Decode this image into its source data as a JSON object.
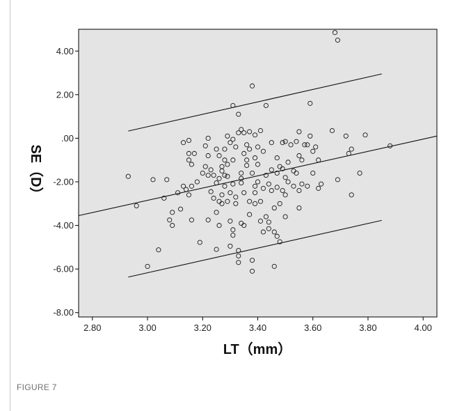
{
  "figure_caption": "FIGURE 7",
  "chart_data": {
    "type": "scatter",
    "xlabel": "LT（mm）",
    "ylabel": "SE（D）",
    "xlim": [
      2.75,
      4.05
    ],
    "ylim": [
      -8.2,
      5.0
    ],
    "xticks": [
      2.8,
      3.0,
      3.2,
      3.4,
      3.6,
      3.8,
      4.0
    ],
    "xtick_labels": [
      "2.80",
      "3.00",
      "3.20",
      "3.40",
      "3.60",
      "3.80",
      "4.00"
    ],
    "yticks": [
      4.0,
      2.0,
      0.0,
      -2.0,
      -4.0,
      -6.0,
      -8.0
    ],
    "ytick_labels": [
      "4.00",
      "2.00",
      ".00",
      "-2.00",
      "-4.00",
      "-6.00",
      "-8.00"
    ],
    "grid": false,
    "background_color": "#e4e4e4",
    "lines": [
      {
        "name": "",
        "x": [
          2.75,
          4.05
        ],
        "y": [
          -3.55,
          0.1
        ]
      },
      {
        "name": "",
        "x": [
          2.93,
          3.85
        ],
        "y": [
          0.33,
          2.95
        ]
      },
      {
        "name": "",
        "x": [
          2.93,
          3.85
        ],
        "y": [
          -6.37,
          -3.77
        ]
      }
    ],
    "points": [
      [
        2.93,
        -1.75
      ],
      [
        2.96,
        -3.1
      ],
      [
        3.0,
        -5.88
      ],
      [
        3.02,
        -1.9
      ],
      [
        3.04,
        -5.12
      ],
      [
        3.06,
        -2.75
      ],
      [
        3.07,
        -1.9
      ],
      [
        3.08,
        -3.75
      ],
      [
        3.09,
        -4.0
      ],
      [
        3.09,
        -3.4
      ],
      [
        3.11,
        -2.5
      ],
      [
        3.12,
        -3.25
      ],
      [
        3.13,
        -2.2
      ],
      [
        3.13,
        -0.2
      ],
      [
        3.14,
        -2.35
      ],
      [
        3.15,
        -1.0
      ],
      [
        3.15,
        -0.7
      ],
      [
        3.15,
        -0.1
      ],
      [
        3.15,
        -2.6
      ],
      [
        3.16,
        -2.2
      ],
      [
        3.16,
        -1.2
      ],
      [
        3.16,
        -3.75
      ],
      [
        3.17,
        -0.7
      ],
      [
        3.18,
        -2.0
      ],
      [
        3.19,
        -4.78
      ],
      [
        3.2,
        -1.6
      ],
      [
        3.21,
        -1.3
      ],
      [
        3.21,
        -0.35
      ],
      [
        3.22,
        -0.8
      ],
      [
        3.22,
        -1.7
      ],
      [
        3.22,
        -3.75
      ],
      [
        3.22,
        0.0
      ],
      [
        3.23,
        -2.45
      ],
      [
        3.23,
        -1.45
      ],
      [
        3.24,
        -1.7
      ],
      [
        3.24,
        -2.75
      ],
      [
        3.25,
        -5.1
      ],
      [
        3.25,
        -0.5
      ],
      [
        3.25,
        -3.4
      ],
      [
        3.25,
        -2.05
      ],
      [
        3.26,
        -1.85
      ],
      [
        3.26,
        -4.0
      ],
      [
        3.26,
        -2.9
      ],
      [
        3.26,
        -0.8
      ],
      [
        3.27,
        -1.5
      ],
      [
        3.27,
        -1.3
      ],
      [
        3.27,
        -2.6
      ],
      [
        3.27,
        -3.0
      ],
      [
        3.28,
        -1.0
      ],
      [
        3.28,
        -1.7
      ],
      [
        3.28,
        -2.2
      ],
      [
        3.28,
        -0.5
      ],
      [
        3.29,
        -1.2
      ],
      [
        3.29,
        0.1
      ],
      [
        3.29,
        -2.9
      ],
      [
        3.29,
        -1.75
      ],
      [
        3.3,
        -3.8
      ],
      [
        3.3,
        -2.5
      ],
      [
        3.3,
        -0.2
      ],
      [
        3.3,
        -4.95
      ],
      [
        3.31,
        -2.1
      ],
      [
        3.31,
        -0.05
      ],
      [
        3.31,
        1.5
      ],
      [
        3.31,
        -1.0
      ],
      [
        3.31,
        -4.2
      ],
      [
        3.31,
        -4.45
      ],
      [
        3.32,
        -3.0
      ],
      [
        3.32,
        -0.4
      ],
      [
        3.32,
        -2.7
      ],
      [
        3.33,
        0.25
      ],
      [
        3.33,
        -5.15
      ],
      [
        3.33,
        -5.4
      ],
      [
        3.33,
        -5.7
      ],
      [
        3.33,
        1.1
      ],
      [
        3.34,
        -1.85
      ],
      [
        3.34,
        -1.6
      ],
      [
        3.34,
        0.4
      ],
      [
        3.34,
        -3.9
      ],
      [
        3.34,
        -2.05
      ],
      [
        3.35,
        -2.5
      ],
      [
        3.35,
        0.25
      ],
      [
        3.35,
        -0.7
      ],
      [
        3.35,
        -4.0
      ],
      [
        3.36,
        -0.3
      ],
      [
        3.36,
        -1.0
      ],
      [
        3.36,
        -1.25
      ],
      [
        3.37,
        -2.9
      ],
      [
        3.37,
        0.3
      ],
      [
        3.37,
        -3.5
      ],
      [
        3.37,
        -0.5
      ],
      [
        3.38,
        -5.6
      ],
      [
        3.38,
        -6.1
      ],
      [
        3.38,
        -1.6
      ],
      [
        3.38,
        2.4
      ],
      [
        3.39,
        -2.2
      ],
      [
        3.39,
        0.15
      ],
      [
        3.39,
        -3.0
      ],
      [
        3.39,
        -0.9
      ],
      [
        3.39,
        -2.5
      ],
      [
        3.4,
        -2.0
      ],
      [
        3.4,
        -0.4
      ],
      [
        3.4,
        -1.2
      ],
      [
        3.41,
        0.35
      ],
      [
        3.41,
        -3.8
      ],
      [
        3.41,
        -2.9
      ],
      [
        3.42,
        -4.3
      ],
      [
        3.42,
        -2.3
      ],
      [
        3.42,
        -0.6
      ],
      [
        3.43,
        -1.7
      ],
      [
        3.43,
        1.5
      ],
      [
        3.43,
        -3.6
      ],
      [
        3.44,
        -3.85
      ],
      [
        3.44,
        -2.1
      ],
      [
        3.44,
        -4.15
      ],
      [
        3.45,
        -0.2
      ],
      [
        3.45,
        -1.45
      ],
      [
        3.45,
        -2.4
      ],
      [
        3.46,
        -4.3
      ],
      [
        3.46,
        -3.2
      ],
      [
        3.46,
        -5.88
      ],
      [
        3.47,
        -2.25
      ],
      [
        3.47,
        -1.6
      ],
      [
        3.47,
        -0.9
      ],
      [
        3.47,
        -4.5
      ],
      [
        3.48,
        -1.3
      ],
      [
        3.48,
        -4.75
      ],
      [
        3.48,
        -3.0
      ],
      [
        3.49,
        -0.2
      ],
      [
        3.49,
        -1.4
      ],
      [
        3.49,
        -2.4
      ],
      [
        3.5,
        -0.15
      ],
      [
        3.5,
        -1.8
      ],
      [
        3.5,
        -2.6
      ],
      [
        3.5,
        -3.6
      ],
      [
        3.51,
        -2.0
      ],
      [
        3.51,
        -1.1
      ],
      [
        3.52,
        -0.3
      ],
      [
        3.53,
        -1.5
      ],
      [
        3.53,
        -2.2
      ],
      [
        3.54,
        -0.15
      ],
      [
        3.54,
        -1.6
      ],
      [
        3.55,
        -3.2
      ],
      [
        3.55,
        -2.4
      ],
      [
        3.55,
        0.3
      ],
      [
        3.55,
        -0.8
      ],
      [
        3.56,
        -1.0
      ],
      [
        3.56,
        -2.1
      ],
      [
        3.57,
        -0.3
      ],
      [
        3.58,
        -2.2
      ],
      [
        3.58,
        -0.3
      ],
      [
        3.59,
        1.6
      ],
      [
        3.59,
        0.1
      ],
      [
        3.6,
        -1.6
      ],
      [
        3.6,
        -0.6
      ],
      [
        3.61,
        -0.4
      ],
      [
        3.62,
        -1.0
      ],
      [
        3.62,
        -2.3
      ],
      [
        3.63,
        -2.1
      ],
      [
        3.67,
        0.35
      ],
      [
        3.68,
        4.85
      ],
      [
        3.69,
        4.5
      ],
      [
        3.69,
        -1.9
      ],
      [
        3.72,
        0.1
      ],
      [
        3.73,
        -0.7
      ],
      [
        3.74,
        -0.5
      ],
      [
        3.74,
        -2.6
      ],
      [
        3.77,
        -1.6
      ],
      [
        3.79,
        0.15
      ],
      [
        3.88,
        -0.35
      ]
    ]
  }
}
